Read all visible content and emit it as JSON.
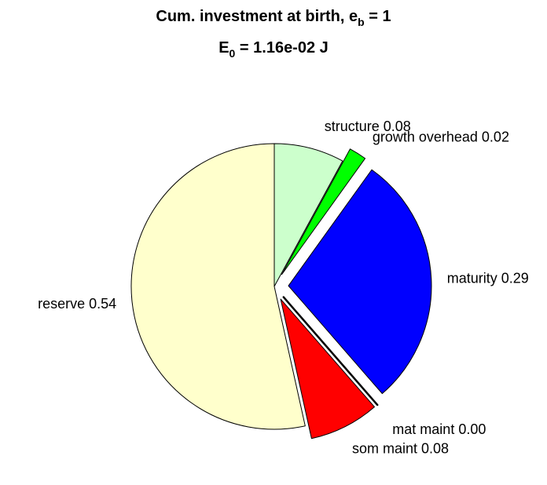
{
  "chart_data": {
    "type": "pie",
    "title": {
      "line1_prefix": "Cum. investment at birth, e",
      "line1_sub": "b",
      "line1_suffix": " = 1",
      "line2_prefix": "E",
      "line2_sub": "0",
      "line2_suffix": " = 1.16e-02 J"
    },
    "slices": [
      {
        "name": "structure",
        "value": 0.08,
        "label": "structure 0.08",
        "color": "#CCFFCC",
        "exploded": false
      },
      {
        "name": "growth overhead",
        "value": 0.02,
        "label": "growth overhead 0.02",
        "color": "#00FF00",
        "exploded": true
      },
      {
        "name": "maturity",
        "value": 0.29,
        "label": "maturity 0.29",
        "color": "#0000FF",
        "exploded": true
      },
      {
        "name": "mat maint",
        "value": 0.0,
        "label": "mat maint 0.00",
        "color": "#000000",
        "exploded": true
      },
      {
        "name": "som maint",
        "value": 0.08,
        "label": "som maint 0.08",
        "color": "#FF0000",
        "exploded": true
      },
      {
        "name": "reserve",
        "value": 0.54,
        "label": "reserve 0.54",
        "color": "#FFFFCC",
        "exploded": false
      }
    ],
    "start_angle": "12 o'clock",
    "direction": "clockwise",
    "legend": "none",
    "grid": false
  }
}
